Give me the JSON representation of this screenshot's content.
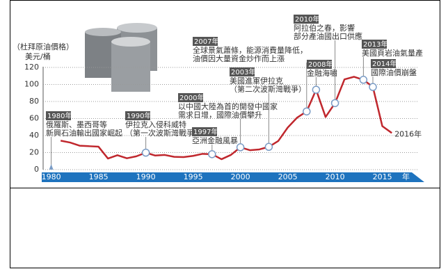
{
  "chart_data": {
    "type": "line",
    "ylabel": "（杜拜原油價格）",
    "yunit": "美元/桶",
    "x_unit": "年",
    "end_label": "2016年",
    "x": [
      1981,
      1982,
      1983,
      1984,
      1985,
      1986,
      1987,
      1988,
      1989,
      1990,
      1991,
      1992,
      1993,
      1994,
      1995,
      1996,
      1997,
      1998,
      1999,
      2000,
      2001,
      2002,
      2003,
      2004,
      2005,
      2006,
      2007,
      2008,
      2009,
      2010,
      2011,
      2012,
      2013,
      2014,
      2015,
      2016
    ],
    "values": [
      34,
      31.8,
      28.1,
      27.5,
      26.9,
      13,
      16.9,
      13.3,
      15.6,
      19.9,
      16.5,
      17.2,
      15,
      14.7,
      16.1,
      18.5,
      18.1,
      12.2,
      17.3,
      26.2,
      22.8,
      23.7,
      26.7,
      33.6,
      49.4,
      61.1,
      68.3,
      93.8,
      61.8,
      78.1,
      106,
      109,
      105.5,
      97,
      51,
      43
    ],
    "color": "#c0272d",
    "xlim": [
      1979,
      2019
    ],
    "xticks": [
      1980,
      1985,
      1990,
      1995,
      2000,
      2005,
      2010,
      2015
    ],
    "ylim": [
      0,
      120
    ],
    "yticks": [
      0,
      20,
      40,
      60,
      80,
      100,
      120
    ],
    "grid": true,
    "annotations": [
      {
        "x": 1980,
        "label": "1980年",
        "lines": [
          "俄羅斯、墨西哥等",
          "新興石油輸出國家崛起"
        ]
      },
      {
        "x": 1990,
        "label": "1990年",
        "lines": [
          "伊拉克入侵科威特",
          "（第一次波斯灣戰爭）"
        ]
      },
      {
        "x": 1997,
        "label": "1997年",
        "lines": [
          "亞洲金融風暴"
        ]
      },
      {
        "x": 2000,
        "label": "2000年",
        "lines": [
          "以中國大陸為首的開發中國家",
          "需求日增，國際油價攀升"
        ]
      },
      {
        "x": 2003,
        "label": "2003年",
        "lines": [
          "美國進軍伊拉克",
          "（第二次波斯灣戰爭）"
        ]
      },
      {
        "x": 2007,
        "label": "2007年",
        "lines": [
          "全球景氣蕭條，能源消費量降低，",
          "油價因大量資金炒作而上漲"
        ]
      },
      {
        "x": 2008,
        "label": "2008年",
        "lines": [
          "金融海嘯"
        ]
      },
      {
        "x": 2010,
        "label": "2010年",
        "lines": [
          "阿拉伯之春，影響",
          "部分產油國出口供應"
        ]
      },
      {
        "x": 2013,
        "label": "2013年",
        "lines": [
          "美國頁岩油氣量產"
        ]
      },
      {
        "x": 2014,
        "label": "2014年",
        "lines": [
          "國際油價崩盤"
        ]
      }
    ]
  }
}
